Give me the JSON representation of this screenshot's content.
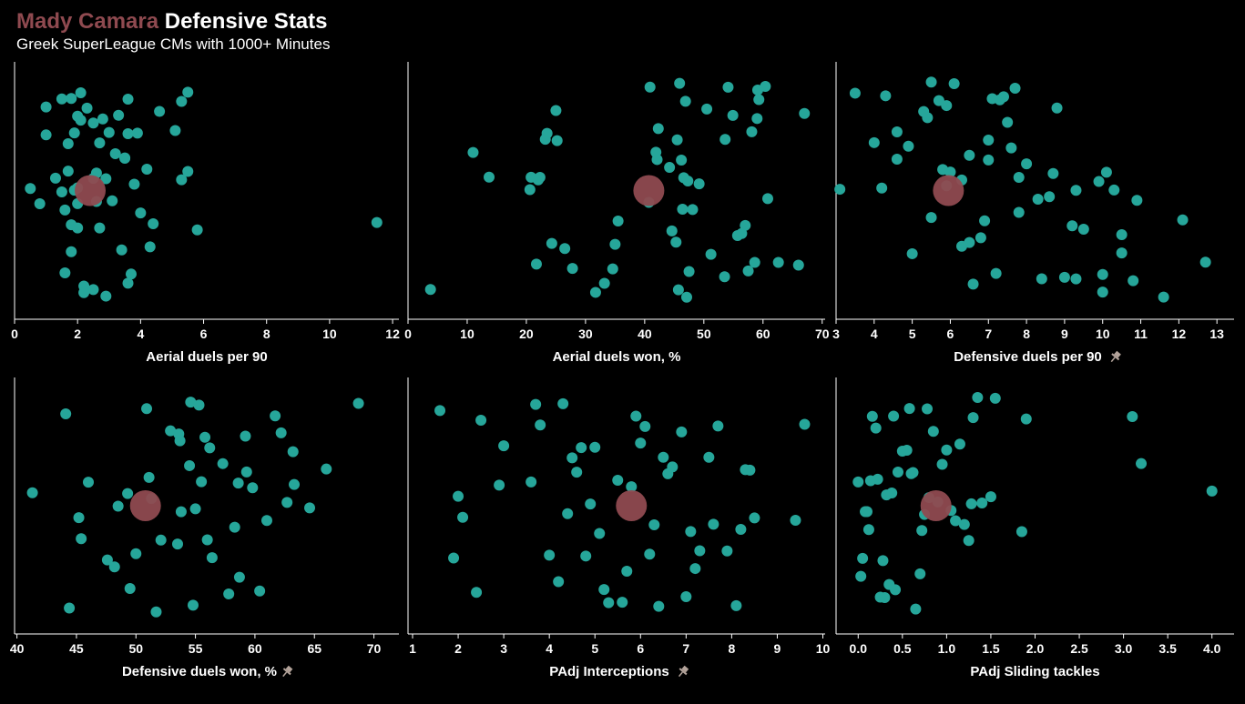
{
  "header": {
    "player_name": "Mady Camara",
    "title_suffix": "Defensive Stats",
    "subtitle": "Greek SuperLeague CMs with 1000+ Minutes"
  },
  "colors": {
    "background": "#000000",
    "dot": "#26a69a",
    "highlight": "#8f4a50",
    "pin": "#b3a39a"
  },
  "chart_data": [
    {
      "type": "scatter",
      "xlabel": "Aerial duels per 90",
      "pinned": false,
      "xlim": [
        0,
        12.2
      ],
      "ticks": [
        0,
        2,
        4,
        6,
        8,
        10,
        12
      ],
      "highlight": 2.4,
      "values": [
        0.5,
        0.8,
        1.0,
        1.0,
        1.3,
        1.5,
        1.5,
        1.6,
        1.6,
        1.7,
        1.7,
        1.8,
        1.8,
        1.8,
        1.9,
        1.9,
        2.0,
        2.0,
        2.0,
        2.0,
        2.1,
        2.1,
        2.2,
        2.2,
        2.3,
        2.5,
        2.5,
        2.5,
        2.6,
        2.6,
        2.7,
        2.7,
        2.8,
        2.9,
        2.9,
        3.0,
        3.1,
        3.2,
        3.3,
        3.4,
        3.5,
        3.5,
        3.6,
        3.6,
        3.6,
        3.7,
        3.8,
        3.9,
        4.0,
        4.2,
        4.3,
        4.4,
        4.6,
        5.1,
        5.3,
        5.3,
        5.5,
        5.5,
        5.8,
        11.5
      ]
    },
    {
      "type": "scatter",
      "xlabel": "Aerial duels won, %",
      "pinned": false,
      "xlim": [
        0,
        70.5
      ],
      "ticks": [
        0,
        10,
        20,
        30,
        40,
        50,
        60,
        70
      ],
      "highlight": 40.7,
      "values": [
        3.8,
        11.0,
        13.7,
        20.6,
        20.8,
        21.7,
        22.0,
        22.3,
        23.2,
        23.5,
        24.3,
        25.0,
        25.2,
        26.5,
        27.8,
        31.7,
        33.2,
        34.6,
        35.0,
        35.5,
        40.7,
        40.9,
        41.9,
        42.1,
        42.3,
        44.2,
        44.6,
        45.3,
        45.5,
        45.7,
        45.9,
        46.2,
        46.4,
        46.6,
        46.9,
        47.1,
        47.3,
        47.5,
        48.1,
        49.2,
        50.5,
        51.2,
        53.5,
        53.6,
        54.1,
        54.9,
        55.7,
        56.4,
        57.0,
        57.5,
        58.1,
        58.6,
        59.0,
        59.1,
        59.3,
        60.4,
        60.8,
        62.6,
        66.0,
        67.0
      ]
    },
    {
      "type": "scatter",
      "xlabel": "Defensive duels per 90",
      "pinned": true,
      "xlim": [
        3,
        13.45
      ],
      "ticks": [
        3,
        4,
        5,
        6,
        7,
        8,
        9,
        10,
        11,
        12,
        13
      ],
      "highlight": 5.95,
      "values": [
        3.1,
        3.5,
        4.0,
        4.2,
        4.3,
        4.6,
        4.6,
        4.9,
        5.0,
        5.3,
        5.4,
        5.5,
        5.5,
        5.7,
        5.8,
        5.9,
        5.9,
        6.0,
        6.1,
        6.3,
        6.3,
        6.5,
        6.5,
        6.6,
        6.8,
        6.9,
        7.0,
        7.0,
        7.1,
        7.2,
        7.3,
        7.4,
        7.5,
        7.6,
        7.7,
        7.8,
        7.8,
        8.0,
        8.3,
        8.4,
        8.6,
        8.7,
        8.8,
        9.0,
        9.2,
        9.3,
        9.3,
        9.5,
        9.9,
        10.0,
        10.0,
        10.1,
        10.3,
        10.5,
        10.5,
        10.8,
        10.9,
        11.6,
        12.1,
        12.7
      ]
    },
    {
      "type": "scatter",
      "xlabel": "Defensive duels won, %",
      "pinned": true,
      "xlim": [
        39.8,
        72.1
      ],
      "ticks": [
        40,
        45,
        50,
        55,
        60,
        65,
        70
      ],
      "highlight": 50.8,
      "values": [
        41.3,
        44.1,
        44.4,
        45.2,
        45.4,
        46.0,
        47.6,
        48.2,
        48.5,
        49.3,
        49.5,
        50.0,
        50.9,
        51.1,
        51.3,
        51.7,
        52.1,
        52.9,
        53.5,
        53.6,
        53.7,
        53.8,
        54.5,
        54.6,
        54.8,
        55.0,
        55.3,
        55.5,
        55.8,
        56.0,
        56.2,
        56.4,
        57.3,
        57.8,
        58.3,
        58.6,
        58.7,
        59.2,
        59.3,
        59.8,
        60.4,
        61.0,
        61.7,
        62.2,
        62.7,
        63.2,
        63.3,
        64.6,
        66.0,
        68.7
      ]
    },
    {
      "type": "scatter",
      "xlabel": "PAdj Interceptions",
      "pinned": true,
      "xlim": [
        0.9,
        10.05
      ],
      "ticks": [
        1,
        2,
        3,
        4,
        5,
        6,
        7,
        8,
        9,
        10
      ],
      "highlight": 5.8,
      "values": [
        1.6,
        1.9,
        2.0,
        2.1,
        2.4,
        2.5,
        2.9,
        3.0,
        3.6,
        3.7,
        3.8,
        4.0,
        4.2,
        4.3,
        4.4,
        4.5,
        4.6,
        4.7,
        4.8,
        4.9,
        5.0,
        5.1,
        5.2,
        5.3,
        5.5,
        5.6,
        5.7,
        5.8,
        5.9,
        6.0,
        6.1,
        6.2,
        6.3,
        6.4,
        6.5,
        6.6,
        6.7,
        6.9,
        7.0,
        7.1,
        7.2,
        7.3,
        7.5,
        7.6,
        7.7,
        7.9,
        8.1,
        8.2,
        8.3,
        8.4,
        8.5,
        9.4,
        9.6
      ]
    },
    {
      "type": "scatter",
      "xlabel": "PAdj Sliding tackles",
      "pinned": false,
      "xlim": [
        -0.25,
        4.25
      ],
      "ticks": [
        0.0,
        0.5,
        1.0,
        1.5,
        2.0,
        2.5,
        3.0,
        3.5,
        4.0
      ],
      "tick_labels": [
        "0.0",
        "0.5",
        "1.0",
        "1.5",
        "2.0",
        "2.5",
        "3.0",
        "3.5",
        "4.0"
      ],
      "highlight": 0.88,
      "values": [
        0.0,
        0.03,
        0.05,
        0.08,
        0.1,
        0.12,
        0.14,
        0.16,
        0.2,
        0.22,
        0.25,
        0.28,
        0.3,
        0.32,
        0.35,
        0.38,
        0.4,
        0.42,
        0.45,
        0.5,
        0.55,
        0.58,
        0.6,
        0.62,
        0.65,
        0.7,
        0.72,
        0.75,
        0.78,
        0.8,
        0.85,
        0.9,
        0.95,
        1.0,
        1.05,
        1.1,
        1.15,
        1.2,
        1.25,
        1.28,
        1.3,
        1.35,
        1.4,
        1.5,
        1.55,
        1.85,
        1.9,
        3.1,
        3.2,
        4.0
      ]
    }
  ]
}
